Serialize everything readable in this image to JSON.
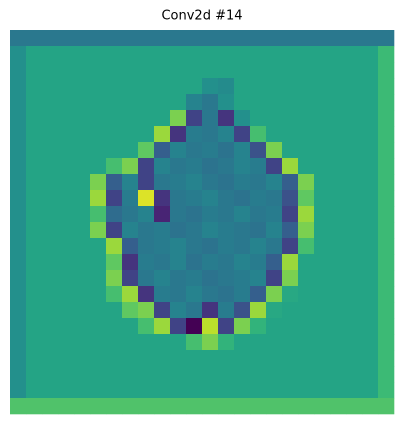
{
  "chart_data": {
    "type": "heatmap",
    "title": "Conv2d #14",
    "colormap": "viridis",
    "vmin": 0,
    "vmax": 1,
    "z": [
      [
        0.4,
        0.4,
        0.4,
        0.4,
        0.4,
        0.4,
        0.4,
        0.4,
        0.4,
        0.4,
        0.4,
        0.4,
        0.4,
        0.4,
        0.4,
        0.4,
        0.4,
        0.4,
        0.4,
        0.4,
        0.4,
        0.4,
        0.4,
        0.4
      ],
      [
        0.5,
        0.58,
        0.58,
        0.58,
        0.58,
        0.58,
        0.58,
        0.58,
        0.58,
        0.58,
        0.58,
        0.58,
        0.58,
        0.58,
        0.58,
        0.58,
        0.58,
        0.58,
        0.58,
        0.58,
        0.58,
        0.58,
        0.58,
        0.68
      ],
      [
        0.5,
        0.58,
        0.58,
        0.58,
        0.58,
        0.58,
        0.58,
        0.58,
        0.58,
        0.58,
        0.58,
        0.58,
        0.58,
        0.58,
        0.58,
        0.58,
        0.58,
        0.58,
        0.58,
        0.58,
        0.58,
        0.58,
        0.58,
        0.68
      ],
      [
        0.5,
        0.58,
        0.58,
        0.58,
        0.58,
        0.58,
        0.58,
        0.58,
        0.58,
        0.58,
        0.58,
        0.58,
        0.5,
        0.48,
        0.58,
        0.58,
        0.58,
        0.58,
        0.58,
        0.58,
        0.58,
        0.58,
        0.58,
        0.68
      ],
      [
        0.5,
        0.58,
        0.58,
        0.58,
        0.58,
        0.58,
        0.58,
        0.58,
        0.58,
        0.58,
        0.58,
        0.45,
        0.4,
        0.5,
        0.58,
        0.58,
        0.58,
        0.58,
        0.58,
        0.58,
        0.58,
        0.58,
        0.58,
        0.68
      ],
      [
        0.5,
        0.58,
        0.58,
        0.58,
        0.58,
        0.58,
        0.58,
        0.58,
        0.58,
        0.58,
        0.8,
        0.2,
        0.4,
        0.15,
        0.5,
        0.58,
        0.58,
        0.58,
        0.58,
        0.58,
        0.58,
        0.58,
        0.58,
        0.68
      ],
      [
        0.5,
        0.58,
        0.58,
        0.58,
        0.58,
        0.58,
        0.58,
        0.58,
        0.58,
        0.85,
        0.15,
        0.42,
        0.4,
        0.45,
        0.2,
        0.7,
        0.58,
        0.58,
        0.58,
        0.58,
        0.58,
        0.58,
        0.58,
        0.68
      ],
      [
        0.5,
        0.58,
        0.58,
        0.58,
        0.58,
        0.58,
        0.58,
        0.58,
        0.75,
        0.3,
        0.45,
        0.4,
        0.42,
        0.38,
        0.45,
        0.25,
        0.8,
        0.58,
        0.58,
        0.58,
        0.58,
        0.58,
        0.58,
        0.68
      ],
      [
        0.5,
        0.58,
        0.58,
        0.58,
        0.58,
        0.58,
        0.7,
        0.8,
        0.2,
        0.45,
        0.4,
        0.42,
        0.38,
        0.4,
        0.45,
        0.42,
        0.2,
        0.85,
        0.58,
        0.58,
        0.58,
        0.58,
        0.58,
        0.68
      ],
      [
        0.5,
        0.58,
        0.58,
        0.58,
        0.58,
        0.8,
        0.3,
        0.45,
        0.2,
        0.4,
        0.42,
        0.45,
        0.4,
        0.38,
        0.42,
        0.4,
        0.45,
        0.3,
        0.8,
        0.58,
        0.58,
        0.58,
        0.58,
        0.68
      ],
      [
        0.5,
        0.58,
        0.58,
        0.58,
        0.58,
        0.85,
        0.2,
        0.42,
        0.95,
        0.15,
        0.4,
        0.42,
        0.45,
        0.4,
        0.38,
        0.42,
        0.4,
        0.25,
        0.75,
        0.58,
        0.58,
        0.58,
        0.58,
        0.68
      ],
      [
        0.5,
        0.58,
        0.58,
        0.58,
        0.58,
        0.7,
        0.35,
        0.4,
        0.45,
        0.1,
        0.4,
        0.38,
        0.42,
        0.4,
        0.45,
        0.4,
        0.42,
        0.2,
        0.85,
        0.58,
        0.58,
        0.58,
        0.58,
        0.68
      ],
      [
        0.5,
        0.58,
        0.58,
        0.58,
        0.58,
        0.8,
        0.2,
        0.45,
        0.4,
        0.42,
        0.38,
        0.4,
        0.45,
        0.42,
        0.4,
        0.38,
        0.45,
        0.3,
        0.8,
        0.58,
        0.58,
        0.58,
        0.58,
        0.68
      ],
      [
        0.5,
        0.58,
        0.58,
        0.58,
        0.58,
        0.58,
        0.85,
        0.3,
        0.4,
        0.42,
        0.45,
        0.4,
        0.38,
        0.42,
        0.4,
        0.45,
        0.4,
        0.2,
        0.7,
        0.58,
        0.58,
        0.58,
        0.58,
        0.68
      ],
      [
        0.5,
        0.58,
        0.58,
        0.58,
        0.58,
        0.58,
        0.75,
        0.15,
        0.42,
        0.4,
        0.45,
        0.38,
        0.42,
        0.4,
        0.45,
        0.42,
        0.3,
        0.85,
        0.58,
        0.58,
        0.58,
        0.58,
        0.58,
        0.68
      ],
      [
        0.5,
        0.58,
        0.58,
        0.58,
        0.58,
        0.58,
        0.8,
        0.2,
        0.4,
        0.45,
        0.4,
        0.42,
        0.38,
        0.4,
        0.42,
        0.45,
        0.2,
        0.8,
        0.58,
        0.58,
        0.58,
        0.58,
        0.58,
        0.68
      ],
      [
        0.5,
        0.58,
        0.58,
        0.58,
        0.58,
        0.58,
        0.7,
        0.85,
        0.15,
        0.42,
        0.4,
        0.45,
        0.4,
        0.38,
        0.42,
        0.3,
        0.8,
        0.6,
        0.58,
        0.58,
        0.58,
        0.58,
        0.58,
        0.68
      ],
      [
        0.5,
        0.58,
        0.58,
        0.58,
        0.58,
        0.58,
        0.58,
        0.75,
        0.8,
        0.2,
        0.45,
        0.4,
        0.15,
        0.42,
        0.25,
        0.85,
        0.6,
        0.58,
        0.58,
        0.58,
        0.58,
        0.58,
        0.58,
        0.68
      ],
      [
        0.5,
        0.58,
        0.58,
        0.58,
        0.58,
        0.58,
        0.58,
        0.58,
        0.7,
        0.85,
        0.2,
        0,
        0.9,
        0.2,
        0.8,
        0.65,
        0.58,
        0.58,
        0.58,
        0.58,
        0.58,
        0.58,
        0.58,
        0.68
      ],
      [
        0.5,
        0.58,
        0.58,
        0.58,
        0.58,
        0.58,
        0.58,
        0.58,
        0.58,
        0.58,
        0.58,
        0.7,
        0.8,
        0.65,
        0.58,
        0.58,
        0.58,
        0.58,
        0.58,
        0.58,
        0.58,
        0.58,
        0.58,
        0.68
      ],
      [
        0.5,
        0.58,
        0.58,
        0.58,
        0.58,
        0.58,
        0.58,
        0.58,
        0.58,
        0.58,
        0.58,
        0.58,
        0.58,
        0.58,
        0.58,
        0.58,
        0.58,
        0.58,
        0.58,
        0.58,
        0.58,
        0.58,
        0.58,
        0.68
      ],
      [
        0.5,
        0.58,
        0.58,
        0.58,
        0.58,
        0.58,
        0.58,
        0.58,
        0.58,
        0.58,
        0.58,
        0.58,
        0.58,
        0.58,
        0.58,
        0.58,
        0.58,
        0.58,
        0.58,
        0.58,
        0.58,
        0.58,
        0.58,
        0.68
      ],
      [
        0.5,
        0.58,
        0.58,
        0.58,
        0.58,
        0.58,
        0.58,
        0.58,
        0.58,
        0.58,
        0.58,
        0.58,
        0.58,
        0.58,
        0.58,
        0.58,
        0.58,
        0.58,
        0.58,
        0.58,
        0.58,
        0.58,
        0.58,
        0.68
      ],
      [
        0.72,
        0.72,
        0.72,
        0.72,
        0.72,
        0.72,
        0.72,
        0.72,
        0.72,
        0.72,
        0.72,
        0.72,
        0.72,
        0.72,
        0.72,
        0.72,
        0.72,
        0.72,
        0.72,
        0.72,
        0.72,
        0.72,
        0.72,
        0.72
      ]
    ]
  }
}
